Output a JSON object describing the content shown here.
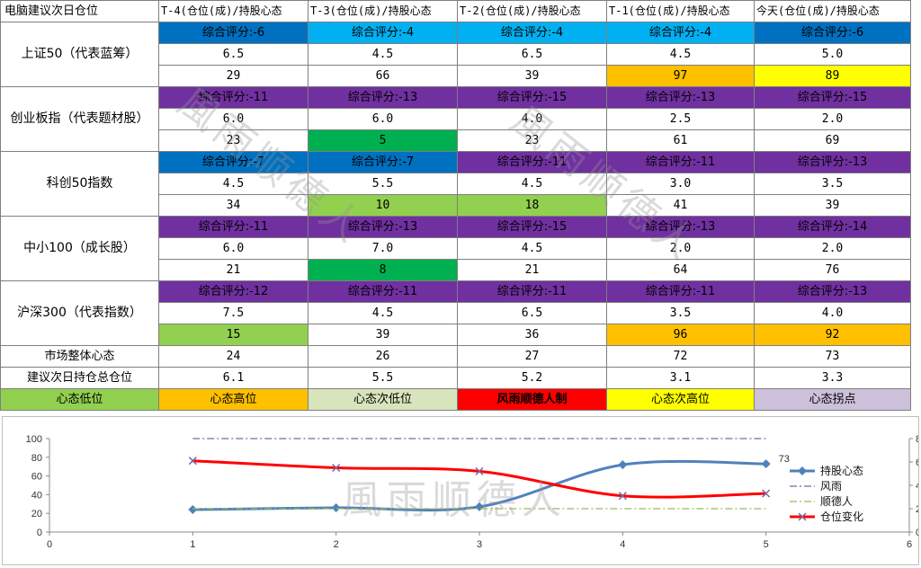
{
  "header": [
    "电脑建议次日仓位",
    "T-4(仓位(成)/持股心态",
    "T-3(仓位(成)/持股心态",
    "T-2(仓位(成)/持股心态",
    "T-1(仓位(成)/持股心态",
    "今天(仓位(成)/持股心态"
  ],
  "indices": [
    {
      "name": "上证50（代表蓝筹）",
      "scores": [
        {
          "text": "综合评分:-6",
          "color": "#0070c0"
        },
        {
          "text": "综合评分:-4",
          "color": "#00b0f0"
        },
        {
          "text": "综合评分:-4",
          "color": "#00b0f0"
        },
        {
          "text": "综合评分:-4",
          "color": "#00b0f0"
        },
        {
          "text": "综合评分:-6",
          "color": "#0070c0"
        }
      ],
      "positions": [
        "6.5",
        "4.5",
        "6.5",
        "4.5",
        "5.0"
      ],
      "sentiment": [
        {
          "text": "29",
          "color": ""
        },
        {
          "text": "66",
          "color": ""
        },
        {
          "text": "39",
          "color": ""
        },
        {
          "text": "97",
          "color": "#ffc000"
        },
        {
          "text": "89",
          "color": "#ffff00"
        }
      ]
    },
    {
      "name": "创业板指（代表题材股）",
      "scores": [
        {
          "text": "综合评分:-11",
          "color": "#7030a0"
        },
        {
          "text": "综合评分:-13",
          "color": "#7030a0"
        },
        {
          "text": "综合评分:-15",
          "color": "#7030a0"
        },
        {
          "text": "综合评分:-13",
          "color": "#7030a0"
        },
        {
          "text": "综合评分:-15",
          "color": "#7030a0"
        }
      ],
      "positions": [
        "6.0",
        "6.0",
        "4.0",
        "2.5",
        "2.0"
      ],
      "sentiment": [
        {
          "text": "23",
          "color": ""
        },
        {
          "text": "5",
          "color": "#00b050"
        },
        {
          "text": "23",
          "color": ""
        },
        {
          "text": "61",
          "color": ""
        },
        {
          "text": "69",
          "color": ""
        }
      ]
    },
    {
      "name": "科创50指数",
      "scores": [
        {
          "text": "综合评分:-7",
          "color": "#0070c0"
        },
        {
          "text": "综合评分:-7",
          "color": "#0070c0"
        },
        {
          "text": "综合评分:-11",
          "color": "#7030a0"
        },
        {
          "text": "综合评分:-11",
          "color": "#7030a0"
        },
        {
          "text": "综合评分:-13",
          "color": "#7030a0"
        }
      ],
      "positions": [
        "4.5",
        "5.5",
        "4.5",
        "3.0",
        "3.5"
      ],
      "sentiment": [
        {
          "text": "34",
          "color": ""
        },
        {
          "text": "10",
          "color": "#92d050"
        },
        {
          "text": "18",
          "color": "#92d050"
        },
        {
          "text": "41",
          "color": ""
        },
        {
          "text": "39",
          "color": ""
        }
      ]
    },
    {
      "name": "中小100（成长股）",
      "scores": [
        {
          "text": "综合评分:-11",
          "color": "#7030a0"
        },
        {
          "text": "综合评分:-13",
          "color": "#7030a0"
        },
        {
          "text": "综合评分:-15",
          "color": "#7030a0"
        },
        {
          "text": "综合评分:-13",
          "color": "#7030a0"
        },
        {
          "text": "综合评分:-14",
          "color": "#7030a0"
        }
      ],
      "positions": [
        "6.0",
        "7.0",
        "4.5",
        "2.0",
        "2.0"
      ],
      "sentiment": [
        {
          "text": "21",
          "color": ""
        },
        {
          "text": "8",
          "color": "#00b050"
        },
        {
          "text": "21",
          "color": ""
        },
        {
          "text": "64",
          "color": ""
        },
        {
          "text": "76",
          "color": ""
        }
      ]
    },
    {
      "name": "沪深300（代表指数）",
      "scores": [
        {
          "text": "综合评分:-12",
          "color": "#7030a0"
        },
        {
          "text": "综合评分:-11",
          "color": "#7030a0"
        },
        {
          "text": "综合评分:-11",
          "color": "#7030a0"
        },
        {
          "text": "综合评分:-11",
          "color": "#7030a0"
        },
        {
          "text": "综合评分:-13",
          "color": "#7030a0"
        }
      ],
      "positions": [
        "7.5",
        "4.5",
        "6.5",
        "3.5",
        "4.0"
      ],
      "sentiment": [
        {
          "text": "15",
          "color": "#92d050"
        },
        {
          "text": "39",
          "color": ""
        },
        {
          "text": "36",
          "color": ""
        },
        {
          "text": "96",
          "color": "#ffc000"
        },
        {
          "text": "92",
          "color": "#ffc000"
        }
      ]
    }
  ],
  "market_row": {
    "label": "市场整体心态",
    "values": [
      "24",
      "26",
      "27",
      "72",
      "73"
    ]
  },
  "advice_row": {
    "label": "建议次日持仓总仓位",
    "values": [
      "6.1",
      "5.5",
      "5.2",
      "3.1",
      "3.3"
    ]
  },
  "legend_row": [
    {
      "text": "心态低位",
      "color": "#92d050"
    },
    {
      "text": "心态高位",
      "color": "#ffc000"
    },
    {
      "text": "心态次低位",
      "color": "#d8e4bc"
    },
    {
      "text": "风雨顺德人制",
      "color": "#ff0000"
    },
    {
      "text": "心态次高位",
      "color": "#ffff00"
    },
    {
      "text": "心态拐点",
      "color": "#ccc0da"
    }
  ],
  "watermarks": [
    "風雨顺德人",
    "風雨顺德人",
    "風雨顺德人"
  ],
  "chart_data": {
    "type": "line",
    "x": [
      1,
      2,
      3,
      4,
      5
    ],
    "xlim": [
      0,
      6
    ],
    "xticks": [
      "0",
      "1",
      "2",
      "3",
      "4",
      "5",
      "6"
    ],
    "ylim": [
      0,
      100
    ],
    "yticks": [
      "0",
      "20",
      "40",
      "60",
      "80",
      "100"
    ],
    "y2lim": [
      0,
      8
    ],
    "y2ticks": [
      "0",
      "2",
      "4",
      "6",
      "8"
    ],
    "grid": false,
    "legend_position": "right",
    "data_label": "73",
    "series": [
      {
        "name": "持股心态",
        "axis": "left",
        "color": "#4f81bd",
        "marker": "diamond",
        "values": [
          24,
          26,
          27,
          72,
          73
        ]
      },
      {
        "name": "风雨",
        "axis": "right",
        "color": "#8064a2",
        "dash": "dashdot",
        "values": [
          8,
          8,
          8,
          8,
          8
        ]
      },
      {
        "name": "顺德人",
        "axis": "right",
        "color": "#9bbb59",
        "dash": "dashdot",
        "values": [
          2,
          2,
          2,
          2,
          2
        ]
      },
      {
        "name": "仓位变化",
        "axis": "right",
        "color": "#ff0000",
        "marker": "x",
        "values": [
          6.1,
          5.5,
          5.2,
          3.1,
          3.3
        ]
      }
    ]
  }
}
